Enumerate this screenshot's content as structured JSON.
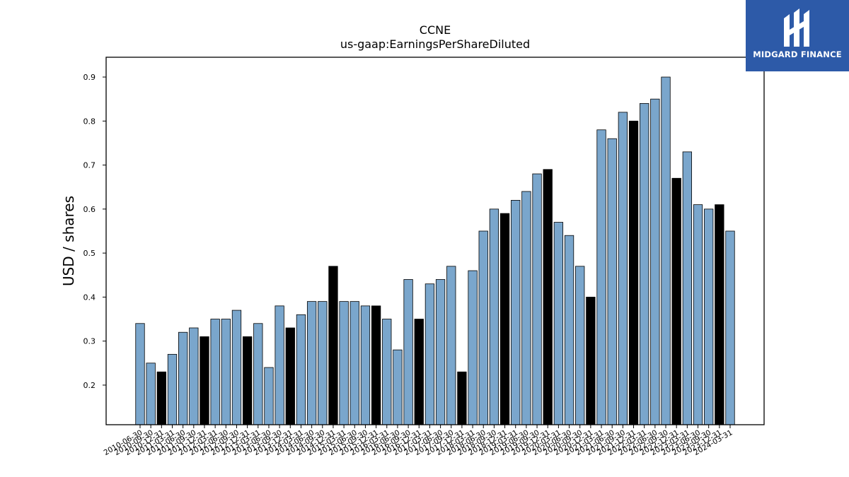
{
  "brand": {
    "name": "MIDGARD FINANCE",
    "bg_color": "#2d5aa8"
  },
  "chart_data": {
    "type": "bar",
    "title": "CCNE",
    "subtitle": "us-gaap:EarningsPerShareDiluted",
    "ylabel": "USD / shares",
    "xlabel": "",
    "ylim": [
      0.11,
      0.945
    ],
    "yticks": [
      "0.2",
      "0.3",
      "0.4",
      "0.5",
      "0.6",
      "0.7",
      "0.8",
      "0.9"
    ],
    "grid": false,
    "colors": {
      "quarterly": "#7aa6cc",
      "annual": "#000000"
    },
    "categories": [
      "2010-06-30",
      "2010-09-30",
      "2010-12-31",
      "2011-03-31",
      "2011-06-30",
      "2011-09-30",
      "2011-12-31",
      "2012-03-31",
      "2012-06-30",
      "2012-09-30",
      "2012-12-31",
      "2013-03-31",
      "2013-06-30",
      "2013-09-30",
      "2013-12-31",
      "2014-03-31",
      "2014-06-30",
      "2014-09-30",
      "2014-12-31",
      "2015-03-31",
      "2015-06-30",
      "2015-09-30",
      "2015-12-31",
      "2016-03-31",
      "2016-06-30",
      "2016-09-30",
      "2016-12-31",
      "2017-03-31",
      "2017-06-30",
      "2017-09-30",
      "2017-12-31",
      "2018-03-31",
      "2018-06-30",
      "2018-09-30",
      "2018-12-31",
      "2019-03-31",
      "2019-06-30",
      "2019-09-30",
      "2019-12-31",
      "2020-03-31",
      "2020-06-30",
      "2020-09-30",
      "2020-12-31",
      "2021-03-31",
      "2021-06-30",
      "2021-09-30",
      "2021-12-31",
      "2022-03-31",
      "2022-06-30",
      "2022-09-30",
      "2022-12-31",
      "2023-03-31",
      "2023-06-30",
      "2023-09-30",
      "2023-12-31",
      "2024-03-31"
    ],
    "values": [
      0.34,
      0.25,
      0.23,
      0.27,
      0.32,
      0.33,
      0.31,
      0.35,
      0.35,
      0.37,
      0.31,
      0.34,
      0.24,
      0.38,
      0.33,
      0.36,
      0.39,
      0.39,
      0.47,
      0.39,
      0.39,
      0.38,
      0.38,
      0.35,
      0.28,
      0.44,
      0.35,
      0.43,
      0.44,
      0.47,
      0.23,
      0.46,
      0.55,
      0.6,
      0.59,
      0.62,
      0.64,
      0.68,
      0.69,
      0.57,
      0.54,
      0.47,
      0.4,
      0.78,
      0.76,
      0.82,
      0.8,
      0.84,
      0.85,
      0.9,
      0.67,
      0.73,
      0.61,
      0.6,
      0.61,
      0.55
    ],
    "annual_flags": [
      0,
      0,
      1,
      0,
      0,
      0,
      1,
      0,
      0,
      0,
      1,
      0,
      0,
      0,
      1,
      0,
      0,
      0,
      1,
      0,
      0,
      0,
      1,
      0,
      0,
      0,
      1,
      0,
      0,
      0,
      1,
      0,
      0,
      0,
      1,
      0,
      0,
      0,
      1,
      0,
      0,
      0,
      1,
      0,
      0,
      0,
      1,
      0,
      0,
      0,
      1,
      0,
      0,
      0,
      1,
      0
    ]
  }
}
